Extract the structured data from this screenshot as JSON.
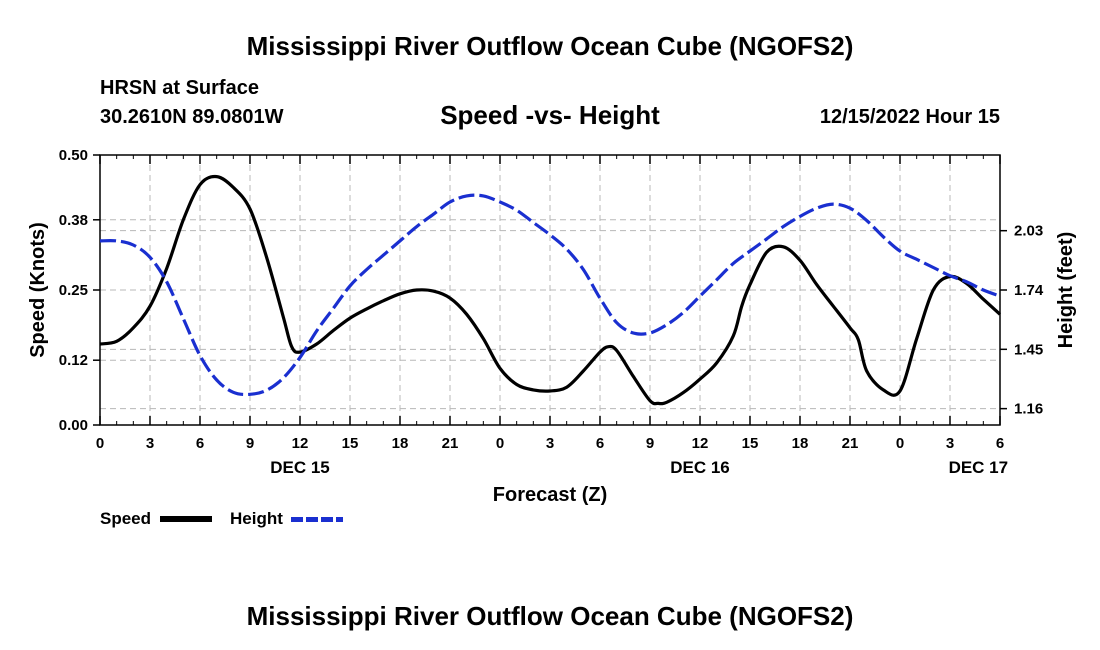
{
  "header": {
    "title": "Mississippi River Outflow Ocean Cube (NGOFS2)",
    "station": "HRSN at Surface",
    "coordinates": "30.2610N  89.0801W",
    "datetime": "12/15/2022 Hour 15"
  },
  "footer": {
    "title": "Mississippi River Outflow Ocean Cube (NGOFS2)"
  },
  "legend": {
    "speed_label": "Speed",
    "height_label": "Height"
  },
  "chart_data": {
    "type": "line",
    "title": "Speed -vs- Height",
    "xlabel": "Forecast (Z)",
    "ylabel_left": "Speed (Knots)",
    "ylabel_right": "Height (feet)",
    "x_range": [
      0,
      54
    ],
    "x_ticks": [
      0,
      3,
      6,
      9,
      12,
      15,
      18,
      21,
      24,
      27,
      30,
      33,
      36,
      39,
      42,
      45,
      48,
      51,
      54
    ],
    "x_tick_labels": [
      "0",
      "3",
      "6",
      "9",
      "12",
      "15",
      "18",
      "21",
      "0",
      "3",
      "6",
      "9",
      "12",
      "15",
      "18",
      "21",
      "0",
      "3",
      "6"
    ],
    "date_labels": [
      {
        "x": 12,
        "label": "DEC 15"
      },
      {
        "x": 36,
        "label": "DEC 16"
      },
      {
        "x": 52.7,
        "label": "DEC 17"
      }
    ],
    "ylim_left": [
      0,
      0.5
    ],
    "y_ticks_left": [
      0.0,
      0.12,
      0.25,
      0.38,
      0.5
    ],
    "y_tick_labels_left": [
      "0.00",
      "0.12",
      "0.25",
      "0.38",
      "0.50"
    ],
    "ylim_right": [
      1.08,
      2.4
    ],
    "y_ticks_right": [
      1.16,
      1.45,
      1.74,
      2.03
    ],
    "y_tick_labels_right": [
      "1.16",
      "1.45",
      "1.74",
      "2.03"
    ],
    "series": [
      {
        "name": "Speed",
        "axis": "left",
        "color": "#000000",
        "style": "solid",
        "x": [
          0,
          1,
          2,
          3,
          4,
          5,
          6,
          7,
          8,
          9,
          10,
          11,
          11.5,
          12,
          13,
          14,
          15,
          16,
          17,
          18,
          19,
          20,
          21,
          22,
          23,
          24,
          25,
          26,
          27,
          28,
          29,
          30,
          30.5,
          31,
          32,
          33,
          33.5,
          34,
          35,
          36,
          37,
          38,
          38.5,
          39,
          40,
          41,
          42,
          43,
          44,
          45,
          45.5,
          46,
          47,
          48,
          49,
          50,
          51,
          52,
          53,
          54
        ],
        "values": [
          0.15,
          0.155,
          0.18,
          0.22,
          0.29,
          0.38,
          0.445,
          0.46,
          0.44,
          0.4,
          0.31,
          0.2,
          0.145,
          0.135,
          0.15,
          0.175,
          0.198,
          0.215,
          0.23,
          0.243,
          0.25,
          0.248,
          0.235,
          0.205,
          0.16,
          0.105,
          0.075,
          0.065,
          0.063,
          0.07,
          0.1,
          0.135,
          0.145,
          0.138,
          0.09,
          0.045,
          0.04,
          0.042,
          0.06,
          0.085,
          0.115,
          0.165,
          0.22,
          0.26,
          0.32,
          0.33,
          0.305,
          0.26,
          0.22,
          0.18,
          0.158,
          0.1,
          0.065,
          0.063,
          0.16,
          0.25,
          0.275,
          0.262,
          0.233,
          0.205
        ]
      },
      {
        "name": "Height",
        "axis": "right",
        "color": "#1a2fd0",
        "style": "dashed",
        "x": [
          0,
          1,
          2,
          3,
          4,
          5,
          6,
          7,
          8,
          9,
          10,
          11,
          12,
          13,
          14,
          15,
          16,
          17,
          18,
          19,
          20,
          21,
          22,
          23,
          24,
          25,
          26,
          27,
          28,
          29,
          30,
          31,
          32,
          33,
          34,
          35,
          36,
          37,
          38,
          39,
          40,
          41,
          42,
          43,
          44,
          45,
          46,
          47,
          48,
          49,
          50,
          51,
          52,
          53,
          54
        ],
        "values": [
          1.98,
          1.98,
          1.96,
          1.9,
          1.78,
          1.6,
          1.42,
          1.3,
          1.24,
          1.23,
          1.25,
          1.31,
          1.41,
          1.54,
          1.65,
          1.76,
          1.84,
          1.91,
          1.98,
          2.05,
          2.11,
          2.17,
          2.2,
          2.2,
          2.17,
          2.13,
          2.07,
          2.01,
          1.94,
          1.84,
          1.7,
          1.58,
          1.53,
          1.53,
          1.57,
          1.63,
          1.71,
          1.79,
          1.87,
          1.93,
          1.99,
          2.05,
          2.1,
          2.14,
          2.16,
          2.14,
          2.08,
          2.0,
          1.93,
          1.89,
          1.85,
          1.81,
          1.78,
          1.74,
          1.71
        ]
      }
    ]
  }
}
